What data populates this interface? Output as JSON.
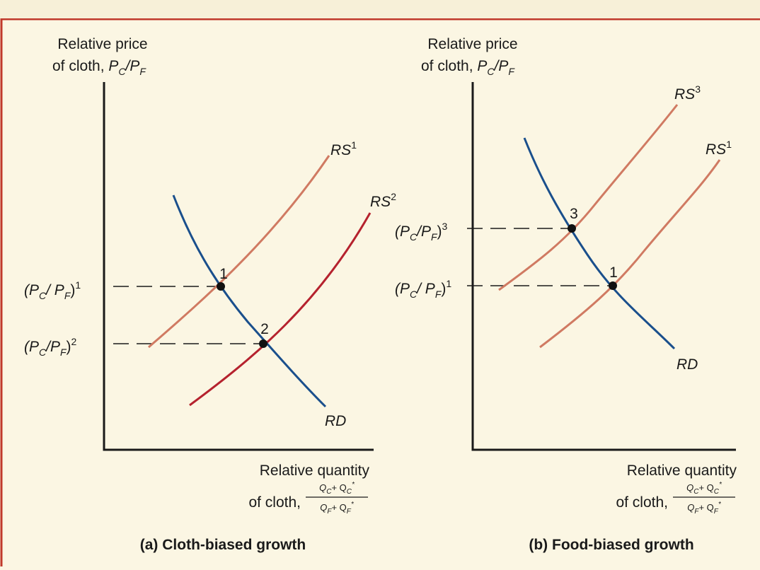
{
  "panels": [
    {
      "y_label_line1": "Relative price",
      "y_label_line2_prefix": "of cloth, ",
      "y_label_var": "P",
      "y_label_sub1": "C",
      "y_label_slash": "/P",
      "y_label_sub2": "F",
      "x_label_line1": "Relative quantity",
      "x_label_line2": "of cloth,",
      "x_num": "Q",
      "x_num_sub1": "C",
      "x_num_plus": "+ Q",
      "x_num_sub2": "C",
      "x_num_star": "*",
      "x_den": "Q",
      "x_den_sub1": "F",
      "x_den_plus": "+ Q",
      "x_den_sub2": "F",
      "x_den_star": "*",
      "caption": "(a) Cloth-biased growth",
      "curves": {
        "rs_a": "RS",
        "rs_a_sup": "1",
        "rs_b": "RS",
        "rs_b_sup": "2",
        "rd": "RD"
      },
      "points": [
        "1",
        "2"
      ],
      "price_levels": [
        {
          "paren": "(P",
          "sub1": "C",
          "mid": "/ P",
          "sub2": "F",
          "close": ")",
          "sup": "1"
        },
        {
          "paren": "(P",
          "sub1": "C",
          "mid": "/P",
          "sub2": "F",
          "close": ")",
          "sup": "2"
        }
      ]
    },
    {
      "y_label_line1": "Relative price",
      "y_label_line2_prefix": "of cloth, ",
      "y_label_var": "P",
      "y_label_sub1": "C",
      "y_label_slash": "/P",
      "y_label_sub2": "F",
      "x_label_line1": "Relative quantity",
      "x_label_line2": "of cloth,",
      "x_num": "Q",
      "x_num_sub1": "C",
      "x_num_plus": "+ Q",
      "x_num_sub2": "C",
      "x_num_star": "*",
      "x_den": "Q",
      "x_den_sub1": "F",
      "x_den_plus": "+ Q",
      "x_den_sub2": "F",
      "x_den_star": "*",
      "caption": "(b) Food-biased growth",
      "curves": {
        "rs_a": "RS",
        "rs_a_sup": "3",
        "rs_b": "RS",
        "rs_b_sup": "1",
        "rd": "RD"
      },
      "points": [
        "3",
        "1"
      ],
      "price_levels": [
        {
          "paren": "(P",
          "sub1": "C",
          "mid": "/P",
          "sub2": "F",
          "close": ")",
          "sup": "3"
        },
        {
          "paren": "(P",
          "sub1": "C",
          "mid": "/ P",
          "sub2": "F",
          "close": ")",
          "sup": "1"
        }
      ]
    }
  ],
  "colors": {
    "frame": "#c0392b",
    "rs_light": "#d07a62",
    "rs_dark": "#b5222e",
    "rd": "#1a4f8c",
    "axis": "#1a1a1a"
  }
}
